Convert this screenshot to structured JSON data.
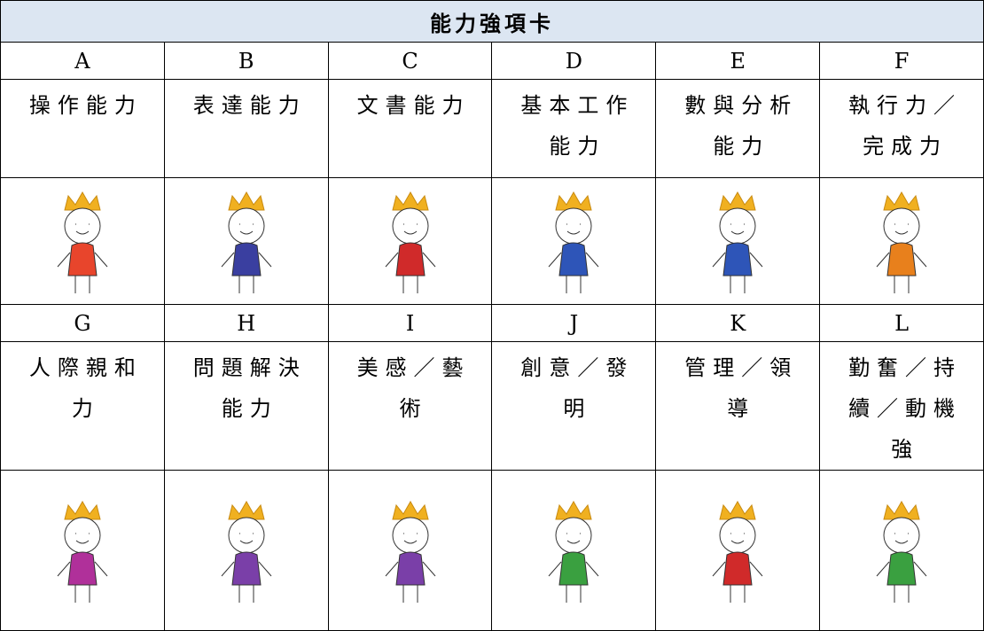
{
  "table": {
    "title": "能力強項卡",
    "cards": [
      {
        "letter": "A",
        "label": "操作能力"
      },
      {
        "letter": "B",
        "label": "表達能力"
      },
      {
        "letter": "C",
        "label": "文書能力"
      },
      {
        "letter": "D",
        "label": "基本工作能力"
      },
      {
        "letter": "E",
        "label": "數與分析能力"
      },
      {
        "letter": "F",
        "label": "執行力／完成力"
      },
      {
        "letter": "G",
        "label": "人際親和力"
      },
      {
        "letter": "H",
        "label": "問題解決能力"
      },
      {
        "letter": "I",
        "label": "美感／藝術"
      },
      {
        "letter": "J",
        "label": "創意／發明"
      },
      {
        "letter": "K",
        "label": "管理／領導"
      },
      {
        "letter": "L",
        "label": "勤奮／持續／動機強"
      }
    ]
  }
}
